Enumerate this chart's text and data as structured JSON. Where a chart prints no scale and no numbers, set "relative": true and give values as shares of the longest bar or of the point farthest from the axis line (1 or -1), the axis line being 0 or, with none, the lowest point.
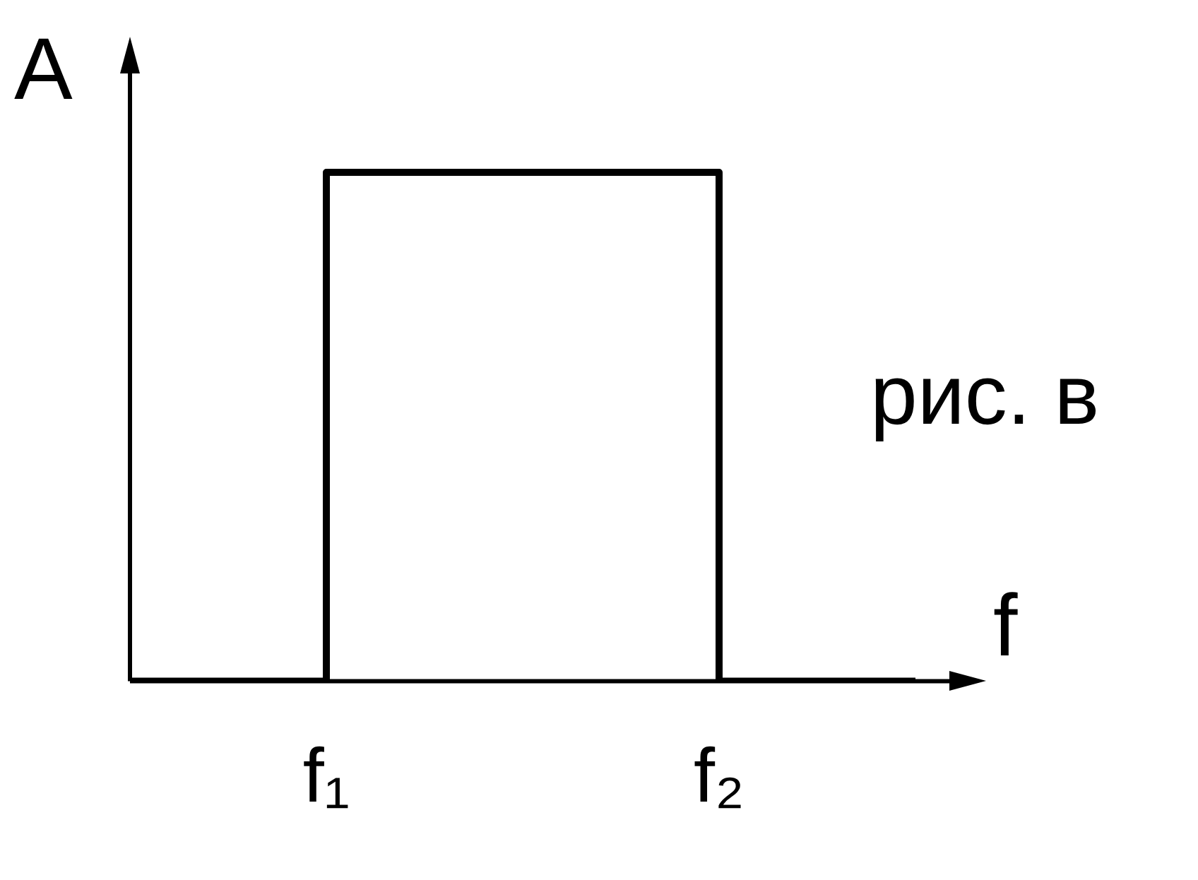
{
  "chart_data": {
    "type": "step",
    "relative": true,
    "categories": [
      null,
      "f₁",
      null,
      "f₂",
      null
    ],
    "values": [
      0,
      1,
      1,
      0,
      0
    ],
    "color": "#000000",
    "xlabel": "f",
    "ylabel": "A",
    "annotations": [
      "рис. в"
    ],
    "grid": false,
    "legend": false,
    "tick_labels": "x",
    "marker": "none",
    "line_style": "solid"
  }
}
